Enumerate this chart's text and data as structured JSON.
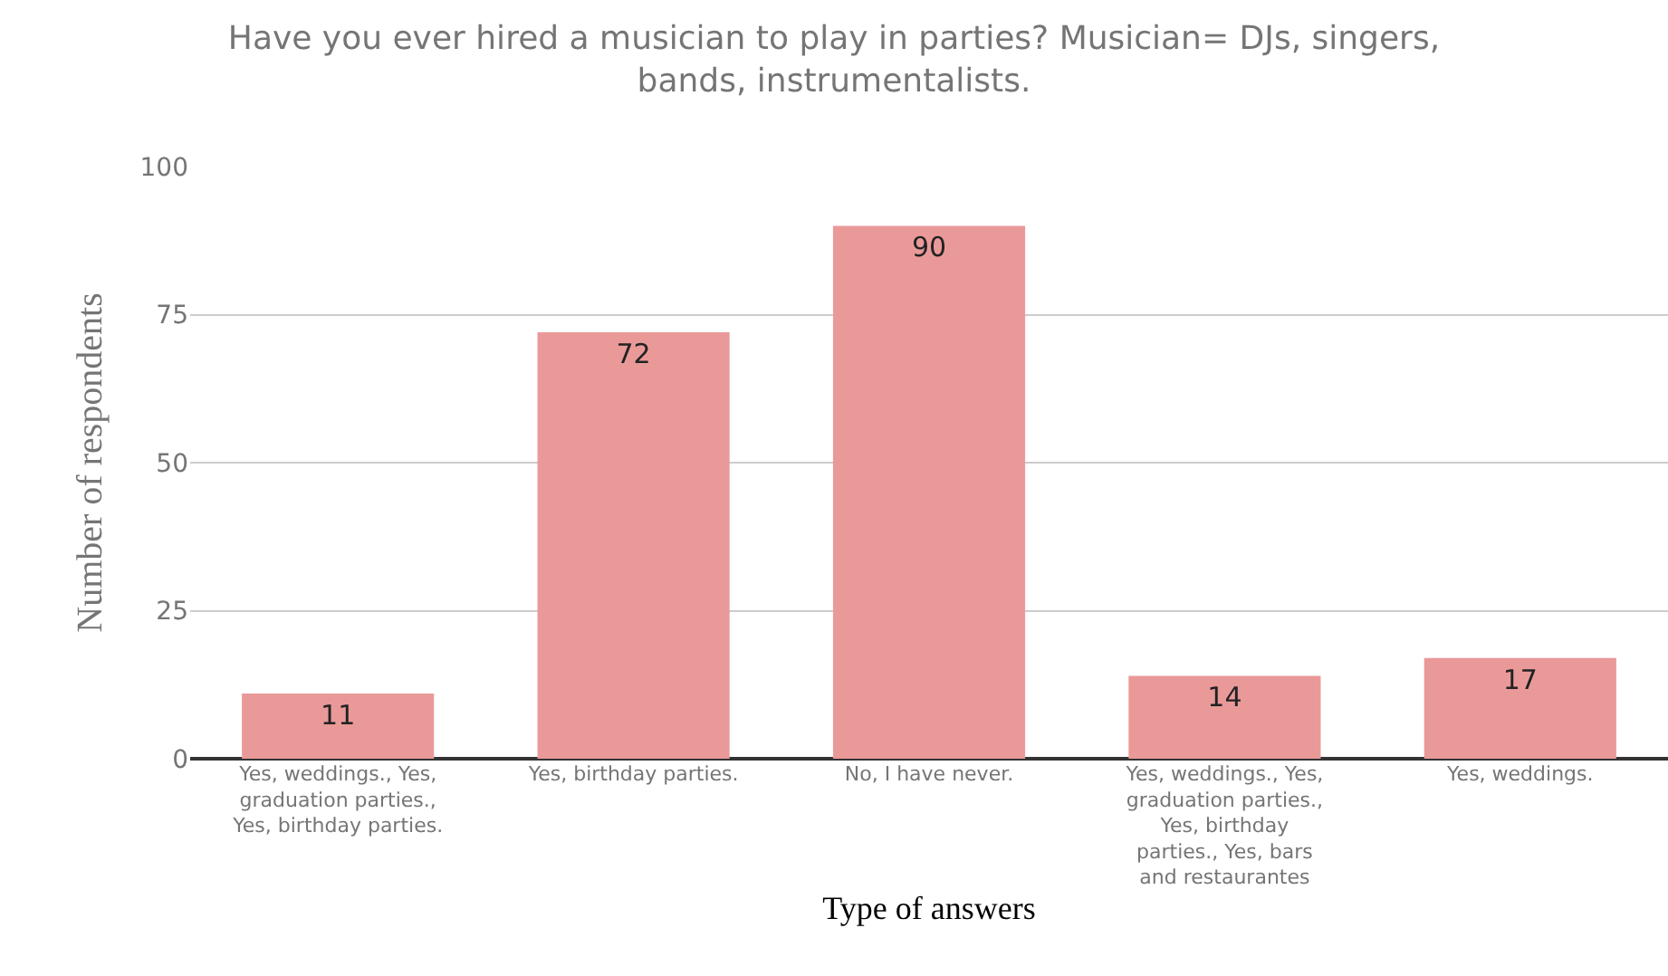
{
  "chart_data": {
    "type": "bar",
    "title": "Have you ever hired a musician to play in parties? Musician= DJs, singers, bands, instrumentalists.",
    "xlabel": "Type of answers",
    "ylabel": "Number of respondents",
    "categories": [
      "Yes, weddings., Yes, graduation parties., Yes, birthday parties.",
      "Yes, birthday parties.",
      "No, I have never.",
      "Yes, weddings., Yes, graduation parties., Yes, birthday parties., Yes, bars and restaurantes",
      "Yes, weddings."
    ],
    "values": [
      11,
      72,
      90,
      14,
      17
    ],
    "color": "#ea9999",
    "ylim": [
      0,
      100
    ],
    "yticks": [
      0,
      25,
      50,
      75,
      100
    ],
    "grid": "y",
    "data_labels": true,
    "legend": false
  }
}
